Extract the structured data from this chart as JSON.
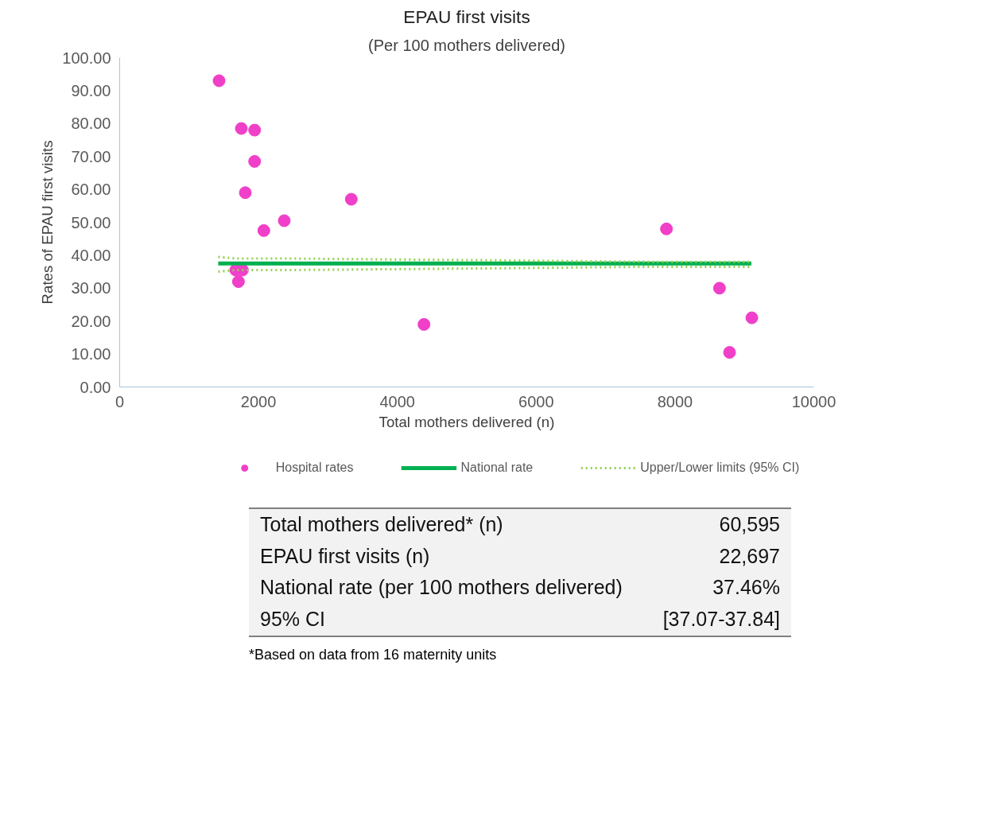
{
  "chart_data": {
    "type": "scatter",
    "title": "EPAU first visits",
    "subtitle": "(Per 100 mothers delivered)",
    "xlabel": "Total mothers delivered (n)",
    "ylabel": "Rates of EPAU first visits",
    "xlim": [
      0,
      10000
    ],
    "xticks": [
      0,
      2000,
      4000,
      6000,
      8000,
      10000
    ],
    "ylim": [
      0,
      100
    ],
    "yticks": [
      {
        "value": 0,
        "label": "0.00"
      },
      {
        "value": 10,
        "label": "10.00"
      },
      {
        "value": 20,
        "label": "20.00"
      },
      {
        "value": 30,
        "label": "30.00"
      },
      {
        "value": 40,
        "label": "40.00"
      },
      {
        "value": 50,
        "label": "50.00"
      },
      {
        "value": 60,
        "label": "60.00"
      },
      {
        "value": 70,
        "label": "70.00"
      },
      {
        "value": 80,
        "label": "80.00"
      },
      {
        "value": 90,
        "label": "90.00"
      },
      {
        "value": 100,
        "label": "100.00"
      }
    ],
    "grid": false,
    "legend": "bottom",
    "series": [
      {
        "name": "Hospital rates",
        "marker": "circle",
        "color": "#f03fc8",
        "x": [
          1432,
          1753,
          1944,
          1944,
          1810,
          3337,
          2371,
          2077,
          1672,
          1768,
          1711,
          4384,
          7877,
          8641,
          9107,
          8786
        ],
        "values": [
          93,
          78.5,
          78,
          68.5,
          59,
          57,
          50.5,
          47.5,
          35.5,
          35.5,
          32,
          19,
          48,
          30,
          21,
          10.5
        ]
      },
      {
        "name": "National rate",
        "type": "line",
        "line_style": "solid",
        "color": "#00b050",
        "x": [
          1420,
          9100
        ],
        "values": [
          37.5,
          37.5
        ]
      },
      {
        "name": "Upper/Lower limits (95% CI)",
        "type": "line",
        "line_style": "dotted",
        "color": "#92d050",
        "x": [
          1420,
          1672,
          2436,
          5223,
          7629,
          9100
        ],
        "values": [
          39.5,
          39,
          39,
          38.5,
          38,
          38
        ]
      },
      {
        "type": "line",
        "line_style": "dotted",
        "color": "#92d050",
        "x": [
          1420,
          1672,
          2436,
          5223,
          7629,
          9100
        ],
        "values": [
          35,
          35.5,
          35.5,
          36,
          36.5,
          36.5
        ]
      }
    ],
    "annotations": [
      "Total mothers delivered* (n)",
      "60,595",
      "EPAU first visits (n)",
      "22,697",
      "National rate (per 100 mothers delivered)",
      "37.46%",
      "95% CI",
      "[37.07-37.84]",
      "*Based on data from 16 maternity units"
    ]
  }
}
